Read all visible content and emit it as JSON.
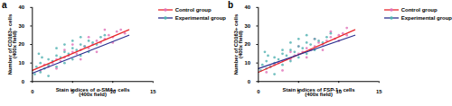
{
  "chart_data": [
    {
      "type": "scatter",
      "title": "a",
      "x_label": "Stain indices of α-SMA+ cells\n(400x field)",
      "y_label": "Number of CD163+ cells\n(400x field)",
      "xlim": [
        0,
        15
      ],
      "xticks": [
        0,
        5,
        10,
        15
      ],
      "ylim": [
        0,
        40
      ],
      "yticks": [
        0,
        10,
        20,
        30,
        40
      ],
      "legend": "right",
      "series": [
        {
          "name": "Control group",
          "color": "#e070b8",
          "marker": "circle",
          "x": [
            1,
            1.5,
            2,
            2.5,
            3,
            3.5,
            4,
            4.5,
            5,
            5.5,
            6,
            6.5,
            7,
            7.5,
            8,
            8.5,
            9,
            9.5,
            10,
            10.5,
            11,
            6,
            7,
            8,
            9,
            4,
            3,
            5,
            10,
            11.5
          ],
          "values": [
            6,
            9,
            8,
            10,
            12,
            11,
            13,
            14,
            16,
            15,
            17,
            19,
            18,
            20,
            22,
            21,
            23,
            25,
            24,
            27,
            28,
            12,
            24,
            16,
            28,
            17,
            7,
            20,
            21,
            26
          ]
        },
        {
          "name": "Experimental group",
          "color": "#4fb0b0",
          "marker": "circle",
          "x": [
            0.3,
            0.5,
            1,
            1,
            1.5,
            2,
            2,
            2.5,
            3,
            3,
            3.5,
            4,
            4,
            4.5,
            5,
            5,
            5.5,
            6,
            6,
            6.5,
            7,
            7,
            7.5,
            8,
            8.5,
            9,
            2,
            3,
            4,
            5,
            6,
            1.2,
            0.8
          ],
          "values": [
            4,
            8,
            5,
            10,
            7,
            9,
            12,
            11,
            8,
            14,
            13,
            10,
            16,
            15,
            12,
            18,
            17,
            14,
            20,
            19,
            16,
            22,
            21,
            20,
            24,
            25,
            3,
            18,
            20,
            22,
            24,
            13,
            15
          ]
        },
        {
          "name": "Control group",
          "color": "#e8262a",
          "type": "line",
          "x": [
            0,
            12
          ],
          "values": [
            6,
            28
          ]
        },
        {
          "name": "Experimental group",
          "color": "#2b2f8f",
          "type": "line",
          "x": [
            0,
            12
          ],
          "values": [
            4.5,
            25
          ]
        }
      ]
    },
    {
      "type": "scatter",
      "title": "b",
      "x_label": "Stain indices of FSP-1+ cells\n(400x field)",
      "y_label": "Number of CD163+ cells\n(400x field)",
      "xlim": [
        0,
        15
      ],
      "xticks": [
        0,
        5,
        10,
        15
      ],
      "ylim": [
        0,
        40
      ],
      "yticks": [
        0,
        10,
        20,
        30,
        40
      ],
      "legend": "right",
      "series": [
        {
          "name": "Control group",
          "color": "#e070b8",
          "marker": "circle",
          "x": [
            1,
            1.5,
            2,
            2.5,
            3,
            3.5,
            4,
            4.5,
            5,
            5.5,
            6,
            6.5,
            7,
            7.5,
            8,
            8.5,
            9,
            9.5,
            10,
            10.5,
            11,
            6,
            7,
            8,
            9,
            4,
            3,
            5,
            10,
            11
          ],
          "values": [
            5,
            8,
            9,
            10,
            11,
            12,
            12,
            14,
            15,
            16,
            18,
            17,
            19,
            21,
            20,
            22,
            24,
            23,
            25,
            26,
            29,
            13,
            23,
            17,
            27,
            16,
            6,
            19,
            22,
            25
          ]
        },
        {
          "name": "Experimental group",
          "color": "#4fb0b0",
          "marker": "circle",
          "x": [
            0.3,
            0.5,
            1,
            1,
            1.5,
            2,
            2,
            2.5,
            3,
            3,
            3.5,
            4,
            4,
            4.5,
            5,
            5,
            5.5,
            6,
            6,
            6.5,
            7,
            7,
            7.5,
            8,
            8.5,
            9,
            2,
            3,
            4,
            5,
            6,
            1.2,
            0.8
          ],
          "values": [
            6,
            9,
            7,
            11,
            8,
            10,
            13,
            12,
            9,
            15,
            14,
            11,
            17,
            16,
            13,
            19,
            18,
            15,
            21,
            20,
            17,
            23,
            22,
            21,
            24,
            26,
            4,
            17,
            21,
            23,
            25,
            14,
            16
          ]
        },
        {
          "name": "Control group",
          "color": "#e8262a",
          "type": "line",
          "x": [
            0,
            12
          ],
          "values": [
            5,
            28
          ]
        },
        {
          "name": "Experimental group",
          "color": "#2b2f8f",
          "type": "line",
          "x": [
            0,
            12
          ],
          "values": [
            7,
            25
          ]
        }
      ]
    }
  ]
}
